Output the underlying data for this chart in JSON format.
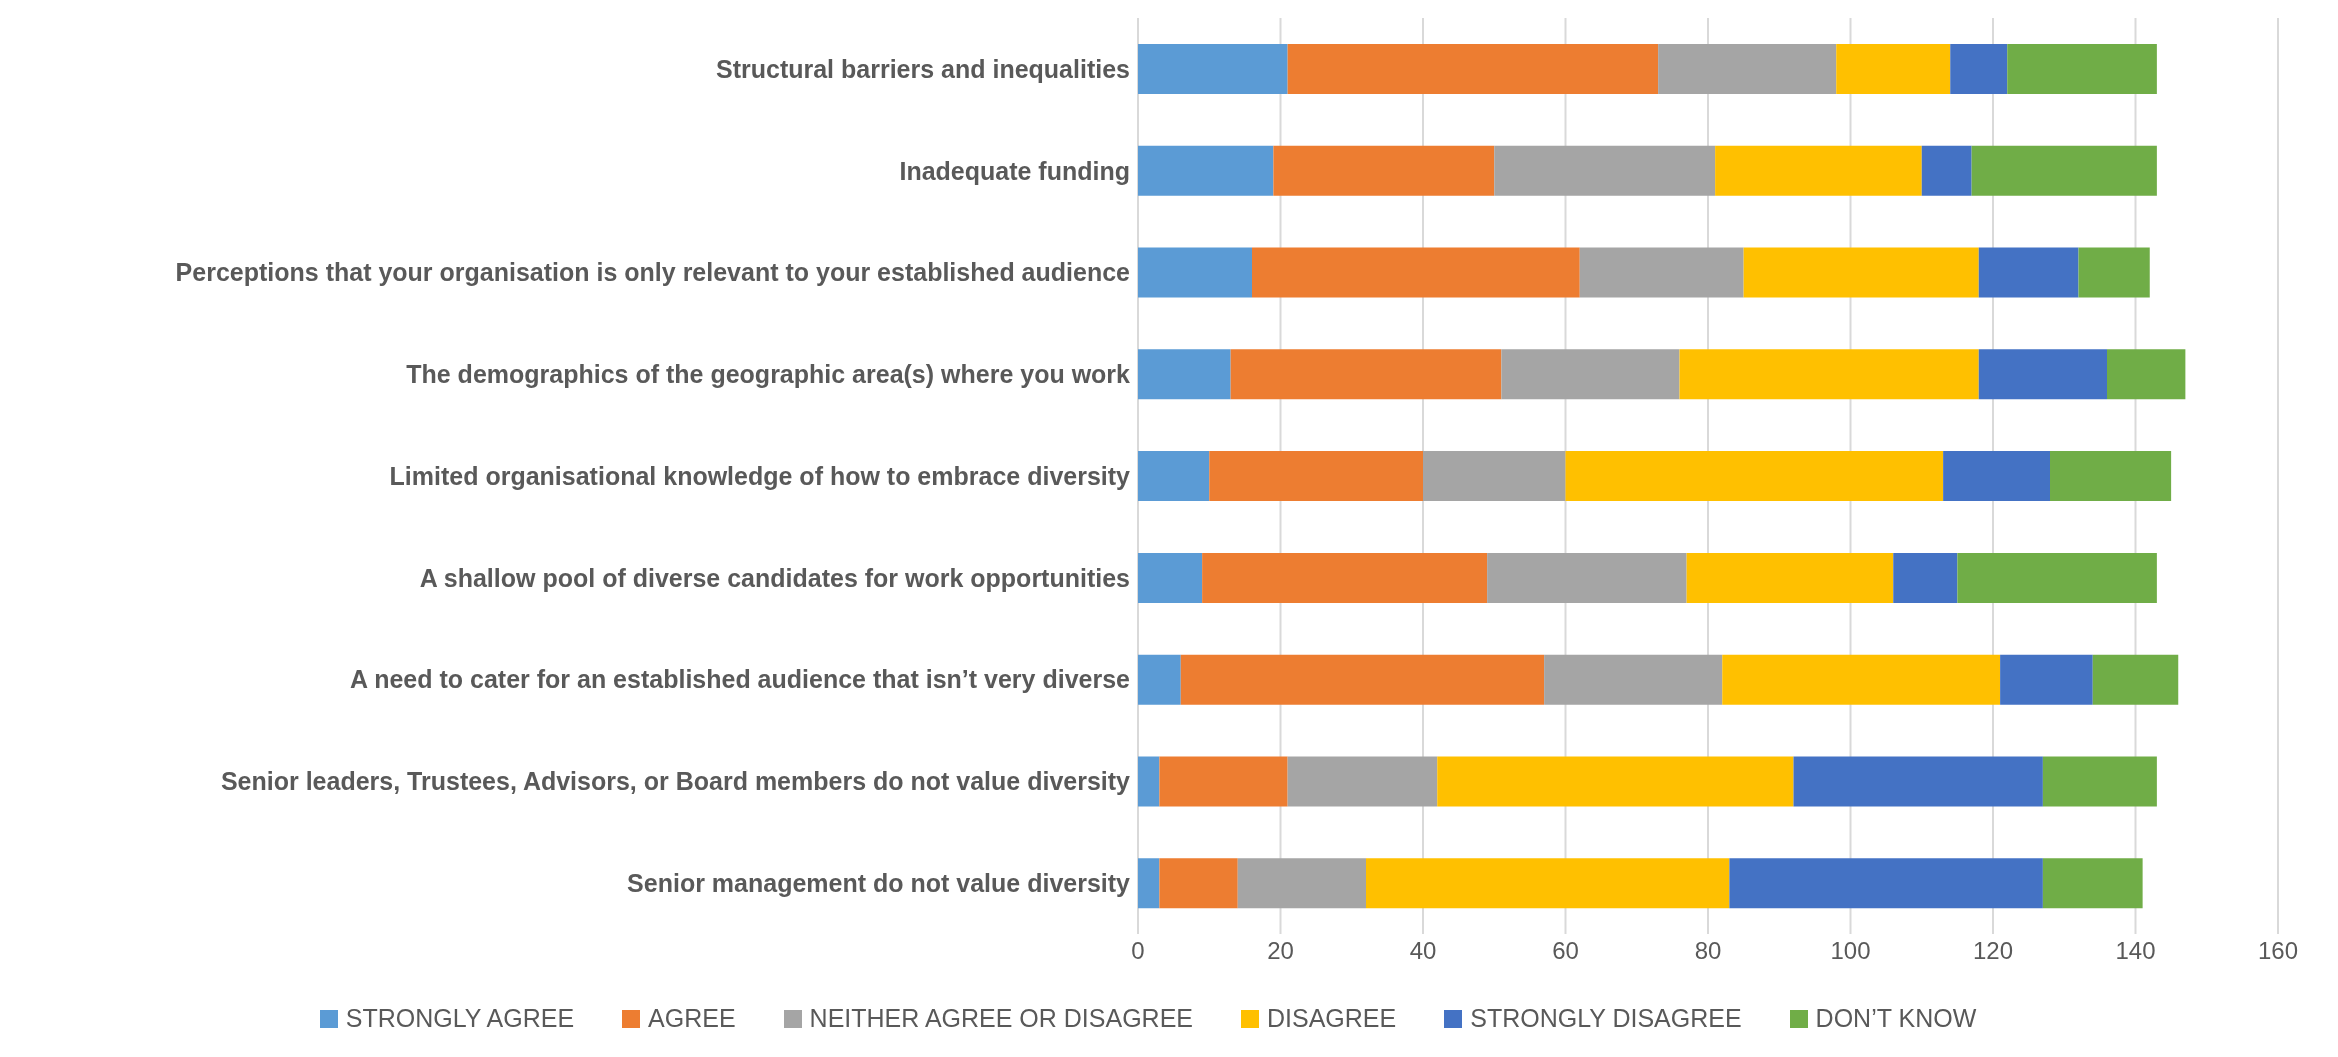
{
  "chart_data": {
    "type": "bar",
    "orientation": "horizontal",
    "stacked": true,
    "categories": [
      "Structural barriers and inequalities",
      "Inadequate funding",
      "Perceptions that your organisation is only relevant to your established audience",
      "The demographics of the geographic area(s) where you work",
      "Limited organisational knowledge of how to embrace diversity",
      "A shallow pool of diverse candidates for work opportunities",
      "A need to cater for an established audience that isn’t very diverse",
      "Senior leaders, Trustees, Advisors, or Board members do not value diversity",
      "Senior management do not value diversity"
    ],
    "series": [
      {
        "name": "STRONGLY AGREE",
        "color": "#5b9bd5",
        "values": [
          21,
          19,
          16,
          13,
          10,
          9,
          6,
          3,
          3
        ]
      },
      {
        "name": "AGREE",
        "color": "#ed7d31",
        "values": [
          52,
          31,
          46,
          38,
          30,
          40,
          51,
          18,
          11
        ]
      },
      {
        "name": "NEITHER AGREE OR DISAGREE",
        "color": "#a5a5a5",
        "values": [
          25,
          31,
          23,
          25,
          20,
          28,
          25,
          21,
          18
        ]
      },
      {
        "name": "DISAGREE",
        "color": "#ffc000",
        "values": [
          16,
          29,
          33,
          42,
          53,
          29,
          39,
          50,
          51
        ]
      },
      {
        "name": "STRONGLY DISAGREE",
        "color": "#4472c4",
        "values": [
          8,
          7,
          14,
          18,
          15,
          9,
          13,
          35,
          44
        ]
      },
      {
        "name": "DON’T KNOW",
        "color": "#70ad47",
        "values": [
          21,
          26,
          10,
          11,
          17,
          28,
          12,
          16,
          14
        ]
      }
    ],
    "xlim": [
      0,
      160
    ],
    "xticks": [
      0,
      20,
      40,
      60,
      80,
      100,
      120,
      140,
      160
    ],
    "grid": "x",
    "legend": "bottom"
  }
}
